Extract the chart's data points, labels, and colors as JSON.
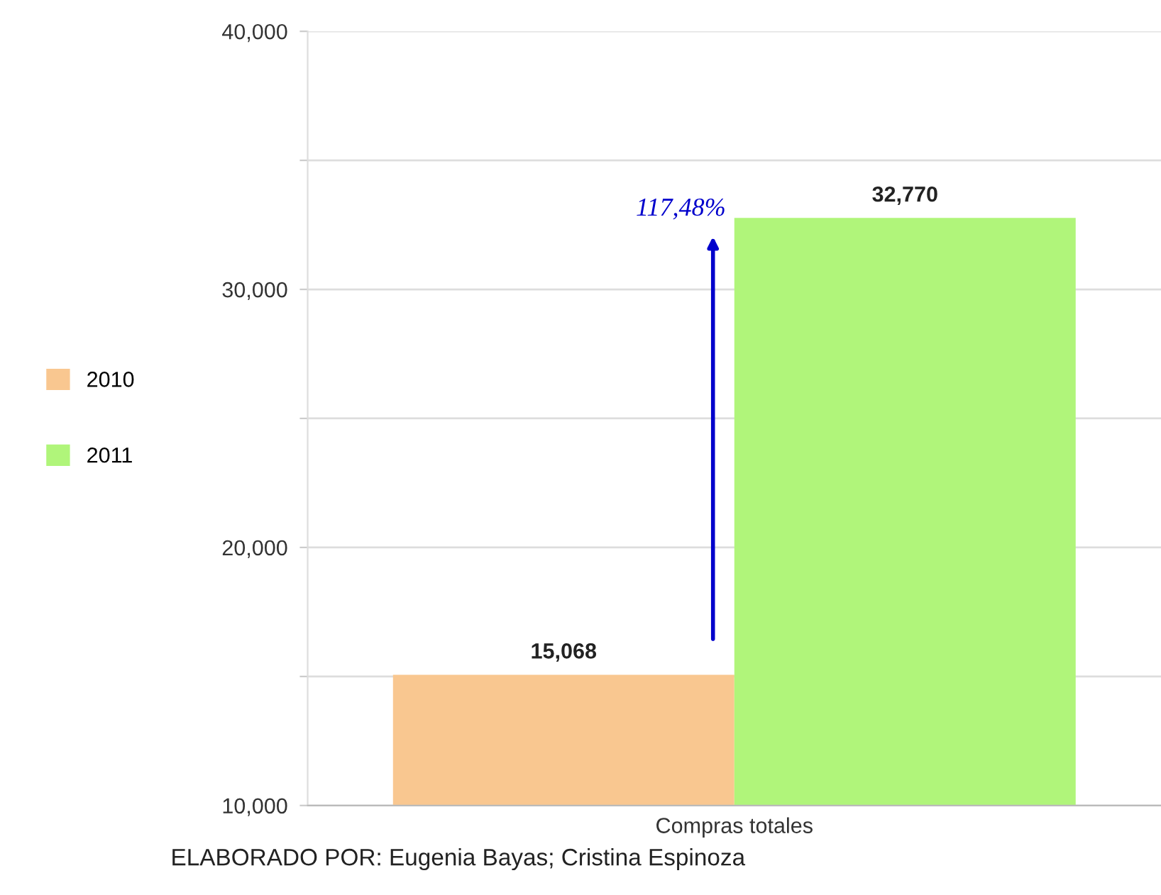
{
  "chart_data": {
    "type": "bar",
    "categories": [
      "Compras totales"
    ],
    "series": [
      {
        "name": "2010",
        "color": "#f9c790",
        "values": [
          15068
        ],
        "value_labels": [
          "15,068"
        ]
      },
      {
        "name": "2011",
        "color": "#b0f57a",
        "values": [
          32770
        ],
        "value_labels": [
          "32,770"
        ]
      }
    ],
    "ylim": [
      10000,
      40000
    ],
    "yticks": [
      {
        "value": 10000,
        "label": "10,000"
      },
      {
        "value": 15000,
        "label": null
      },
      {
        "value": 20000,
        "label": "20,000"
      },
      {
        "value": 25000,
        "label": null
      },
      {
        "value": 30000,
        "label": "30,000"
      },
      {
        "value": 35000,
        "label": null
      },
      {
        "value": 40000,
        "label": "40,000"
      }
    ],
    "grid": "y",
    "legend": "left",
    "annotations": [
      "117,48%",
      "ELABORADO POR: Eugenia Bayas; Cristina Espinoza"
    ]
  }
}
